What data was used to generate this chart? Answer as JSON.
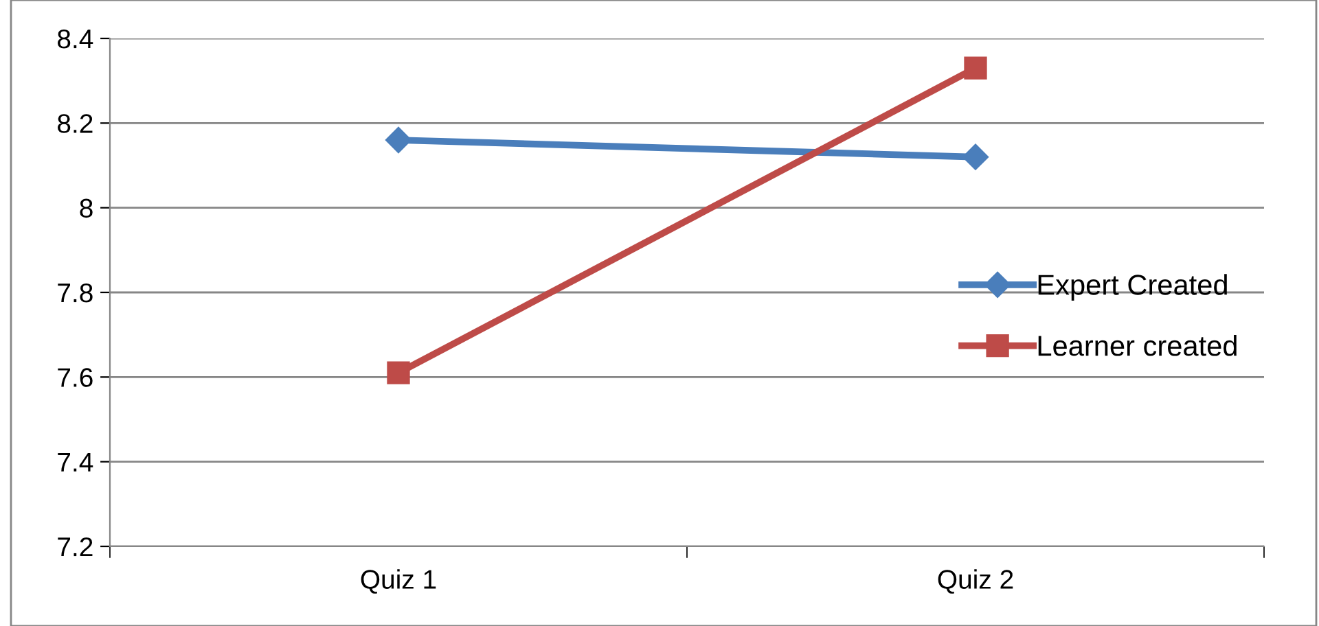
{
  "chart_data": {
    "type": "line",
    "categories": [
      "Quiz 1",
      "Quiz 2"
    ],
    "series": [
      {
        "name": "Expert Created",
        "color": "#4a7ebb",
        "marker": "diamond",
        "values": [
          8.16,
          8.12
        ]
      },
      {
        "name": "Learner created",
        "color": "#be4b48",
        "marker": "square",
        "values": [
          7.61,
          8.33
        ]
      }
    ],
    "ylim": [
      7.2,
      8.4
    ],
    "yticks": [
      7.2,
      7.4,
      7.6,
      7.8,
      8,
      8.2,
      8.4
    ],
    "grid": "y",
    "legend": "right",
    "line_style": "solid"
  }
}
